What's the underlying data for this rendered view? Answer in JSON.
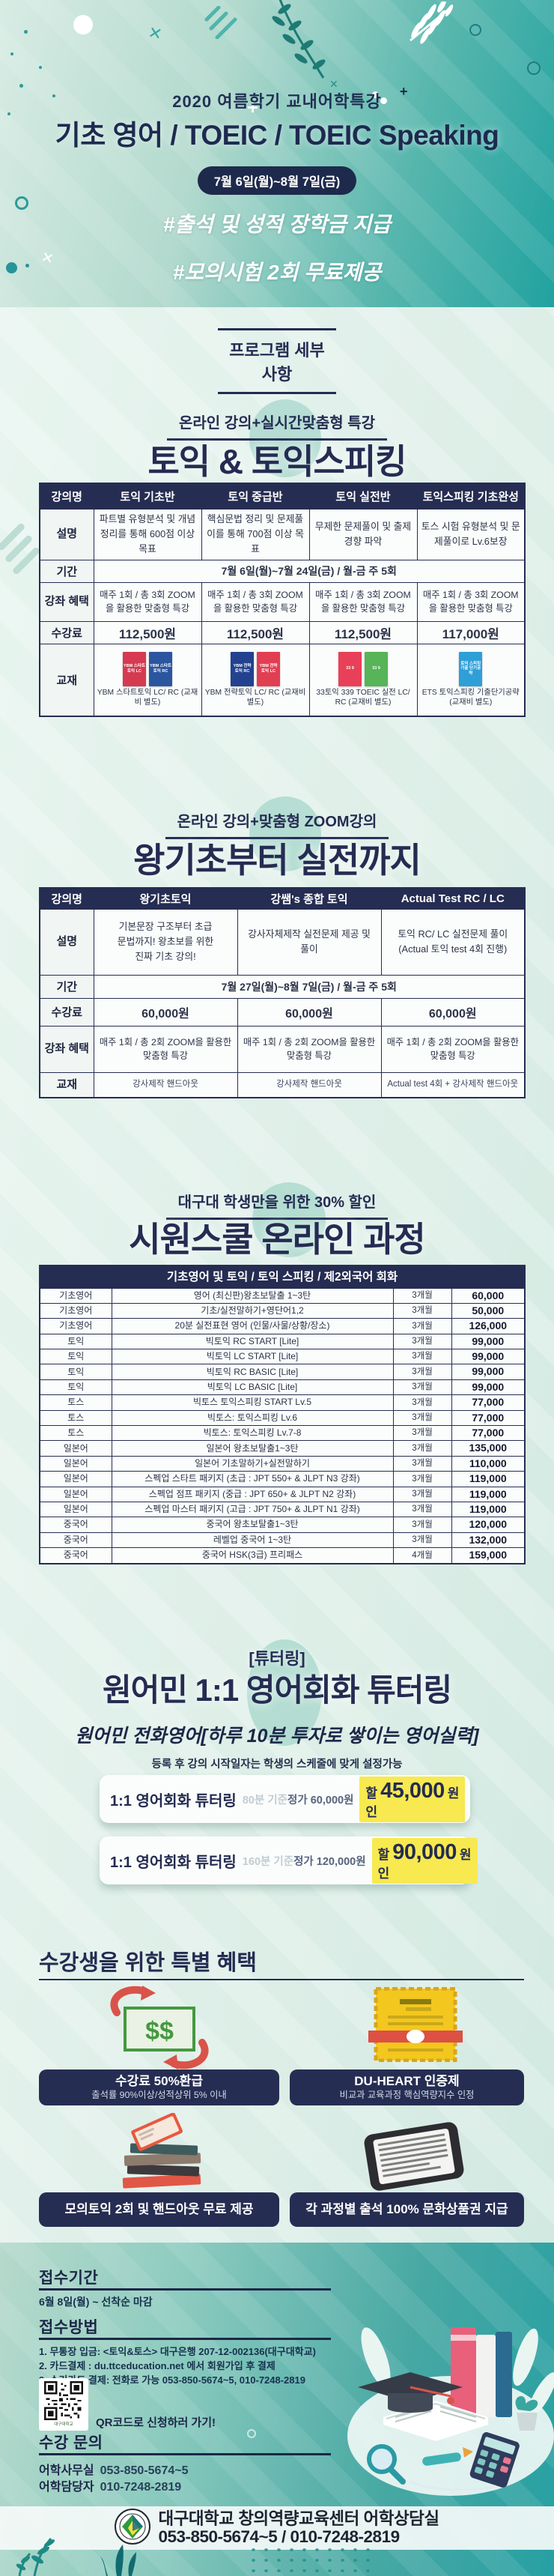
{
  "colors": {
    "navy": "#262D52",
    "teal": "#21A2A0",
    "mint": "#E3EFEA",
    "highlight_yellow": "#F7E94F"
  },
  "hero": {
    "subtitle": "2020 여름학기 교내어학특강",
    "title": "기초 영어 / TOEIC / TOEIC Speaking",
    "date_badge": "7월 6일(월)~8월 7일(금)",
    "hashtag1": "#출석 및 성적 장학금 지급",
    "hashtag2": "#모의시험 2회 무료제공"
  },
  "program_heading": "프로그램 세부사항",
  "toeic": {
    "subtitle": "온라인 강의+실시간맞춤형 특강",
    "title": "토익 & 토익스피킹",
    "table": {
      "corner": "강의명",
      "labels": {
        "desc": "설명",
        "period": "기간",
        "benefit": "강좌 혜택",
        "price": "수강료",
        "book": "교재"
      },
      "period": "7월 6일(월)~7월 24일(금) / 월-금  주 5회",
      "columns": [
        {
          "name": "토익 기초반",
          "desc": "파트별 유형분석 및 개념정리를 통해 600점 이상 목표",
          "benefit": "매주 1회 / 총 3회 ZOOM을 활용한 맞춤형 특강",
          "price": "112,500원",
          "books": [
            {
              "label": "YBM 스타트 토익 LC",
              "color": "#D63A50"
            },
            {
              "label": "YBM 스타트 토익 RC",
              "color": "#2C55A0"
            }
          ],
          "book_caption": "YBM 스타트토익 LC/ RC (교재비 별도)"
        },
        {
          "name": "토익 중급반",
          "desc": "핵심문법 정리 및 문제풀이를 통해 700점 이상 목표",
          "benefit": "매주 1회 / 총 3회 ZOOM을 활용한 맞춤형 특강",
          "price": "112,500원",
          "books": [
            {
              "label": "YBM 전략 토익 RC",
              "color": "#22418F"
            },
            {
              "label": "YBM 전략 토익 LC",
              "color": "#E23E52"
            }
          ],
          "book_caption": "YBM 전략토익 LC/ RC (교재비 별도)"
        },
        {
          "name": "토익 실전반",
          "desc": "무제한 문제풀이 및 출제경향 파악",
          "benefit": "매주 1회 / 총 3회 ZOOM을 활용한 맞춤형 특강",
          "price": "112,500원",
          "books": [
            {
              "label": "33 9",
              "color": "#E84058"
            },
            {
              "label": "33 9",
              "color": "#57B457"
            }
          ],
          "book_caption": "33토익 339 TOEIC 실전 LC/ RC (교재비 별도)"
        },
        {
          "name": "토익스피킹 기초완성",
          "desc": "토스 시험 유형분석 및 문제풀이로 Lv.6보장",
          "benefit": "매주 1회 / 총 3회 ZOOM을 활용한 맞춤형 특강",
          "price": "117,000원",
          "books": [
            {
              "label": "토익 스피킹 기출 단기공략",
              "color": "#2F9FD8"
            }
          ],
          "book_caption": "ETS 토익스피킹 기출단기공략 (교재비 별도)"
        }
      ]
    }
  },
  "basic": {
    "subtitle": "온라인 강의+맞춤형 ZOOM강의",
    "title": "왕기초부터 실전까지",
    "table": {
      "corner": "강의명",
      "labels": {
        "desc": "설명",
        "period": "기간",
        "price": "수강료",
        "benefit": "강좌 혜택",
        "book": "교재"
      },
      "period": "7월 27일(월)~8월 7일(금) / 월-금  주 5회",
      "columns": [
        {
          "name": "왕기초토익",
          "desc": "기본문장 구조부터 초급 문법까지! 왕초보를 위한 진짜 기초 강의!",
          "price": "60,000원",
          "benefit": "매주 1회 / 총 2회 ZOOM을 활용한 맞춤형 특강",
          "book": "강사제작 핸드아웃"
        },
        {
          "name": "강쌤's 종합 토익",
          "desc": "강사자체제작 실전문제 제공 및 풀이",
          "price": "60,000원",
          "benefit": "매주 1회 / 총 2회 ZOOM을 활용한 맞춤형 특강",
          "book": "강사제작 핸드아웃"
        },
        {
          "name": "Actual Test RC / LC",
          "desc": "토익 RC/ LC 실전문제 풀이 (Actual 토익 test 4회 진행)",
          "price": "60,000원",
          "benefit": "매주 1회 / 총 2회 ZOOM을 활용한 맞춤형 특강",
          "book": "Actual test 4회 + 강사제작 핸드아웃"
        }
      ]
    }
  },
  "siwon": {
    "subtitle": "대구대 학생만을 위한 30% 할인",
    "title": "시원스쿨 온라인 과정",
    "table": {
      "header": "기초영어 및 토익 / 토익 스피킹 / 제2외국어 회화",
      "rows": [
        {
          "category": "기초영어",
          "name": "영어 (최신판)왕초보탈출 1~3탄",
          "duration": "3개월",
          "price": "60,000"
        },
        {
          "category": "기초영어",
          "name": "기초/실전말하기+영단어1,2",
          "duration": "3개월",
          "price": "50,000"
        },
        {
          "category": "기초영어",
          "name": "20분 실전표현 영어 (인물/사물/상황/장소)",
          "duration": "3개월",
          "price": "126,000"
        },
        {
          "category": "토익",
          "name": "빅토익 RC START [Lite]",
          "duration": "3개월",
          "price": "99,000"
        },
        {
          "category": "토익",
          "name": "빅토익 LC START [Lite]",
          "duration": "3개월",
          "price": "99,000"
        },
        {
          "category": "토익",
          "name": "빅토익 RC BASIC [Lite]",
          "duration": "3개월",
          "price": "99,000"
        },
        {
          "category": "토익",
          "name": "빅토익 LC BASIC [Lite]",
          "duration": "3개월",
          "price": "99,000"
        },
        {
          "category": "토스",
          "name": "빅토스 토익스피킹 START Lv.5",
          "duration": "3개월",
          "price": "77,000"
        },
        {
          "category": "토스",
          "name": "빅토스: 토익스피킹 Lv.6",
          "duration": "3개월",
          "price": "77,000"
        },
        {
          "category": "토스",
          "name": "빅토스: 토익스피킹 Lv.7-8",
          "duration": "3개월",
          "price": "77,000"
        },
        {
          "category": "일본어",
          "name": "일본어 왕초보탈출1~3탄",
          "duration": "3개월",
          "price": "135,000"
        },
        {
          "category": "일본어",
          "name": "일본어 기초말하기+실전말하기",
          "duration": "3개월",
          "price": "110,000"
        },
        {
          "category": "일본어",
          "name": "스펙업 스타트 패키지 (초급 : JPT 550+ & JLPT N3 강좌)",
          "duration": "3개월",
          "price": "119,000"
        },
        {
          "category": "일본어",
          "name": "스펙업 점프 패키지 (중급 : JPT 650+ & JLPT N2 강좌)",
          "duration": "3개월",
          "price": "119,000"
        },
        {
          "category": "일본어",
          "name": "스펙업 마스터 패키지 (고급 : JPT 750+ & JLPT N1 강좌)",
          "duration": "3개월",
          "price": "119,000"
        },
        {
          "category": "중국어",
          "name": "중국어 왕초보탈출1~3탄",
          "duration": "3개월",
          "price": "120,000"
        },
        {
          "category": "중국어",
          "name": "레벨업 중국어 1~3탄",
          "duration": "3개월",
          "price": "132,000"
        },
        {
          "category": "중국어",
          "name": "중국어 HSK(3급) 프리패스",
          "duration": "4개월",
          "price": "159,000"
        }
      ]
    }
  },
  "tutoring": {
    "tag": "[튜터링]",
    "title": "원어민 1:1 영어회화 튜터링",
    "handwriting": "원어민 전화영어[하루 10분 투자로 쌓이는 영어실력]",
    "note": "등록 후 강의 시작일자는 학생의 스케줄에 맞게 설정가능",
    "cards": [
      {
        "label": "1:1 영어회화 튜터링",
        "basis": "80분 기준",
        "original": "정가 60,000원",
        "sale_prefix": "할인",
        "sale_num": "45,000",
        "sale_won": "원"
      },
      {
        "label": "1:1 영어회화 튜터링",
        "basis": "160분 기준",
        "original": "정가 120,000원",
        "sale_prefix": "할인",
        "sale_num": "90,000",
        "sale_won": "원"
      }
    ]
  },
  "benefits": {
    "title": "수강생을 위한 특별 혜택",
    "badge1_title": "수강료 50%환급",
    "badge1_sub": "출석률 90%이상/성적상위 5% 이내",
    "badge2_title": "DU-HEART 인증제",
    "badge2_sub": "비교과 교육과정 핵심역량지수 인정",
    "badge3_title": "모의토익 2회 및 핸드아웃 무료 제공",
    "badge4_title": "각 과정별 출석 100% 문화상품권 지급",
    "money_icon_text": "$$"
  },
  "apply": {
    "period_title": "접수기간",
    "period": "6월 8일(월) ~ 선착순 마감",
    "method_title": "접수방법",
    "method1": "1. 무통장 입금: <토익&토스> 대구은행 207-12-002136(대구대학교)",
    "method2": "2. 카드결제 : du.ttceducation.net 에서 회원가입 후 결제",
    "method3": "3. 수기카드 결제: 전화로 가능 053-850-5674~5, 010-7248-2819",
    "qr_small_caption": "대구대학교",
    "qr_label": "QR코드로 신청하러 가기!",
    "contact_title": "수강 문의",
    "contact1_label": "어학사무실",
    "contact1_value": "053-850-5674~5",
    "contact2_label": "어학담당자",
    "contact2_value": "010-7248-2819"
  },
  "footer_bar": {
    "org": "대구대학교 창의역량교육센터 어학상담실",
    "phone": "053-850-5674~5 / 010-7248-2819"
  }
}
